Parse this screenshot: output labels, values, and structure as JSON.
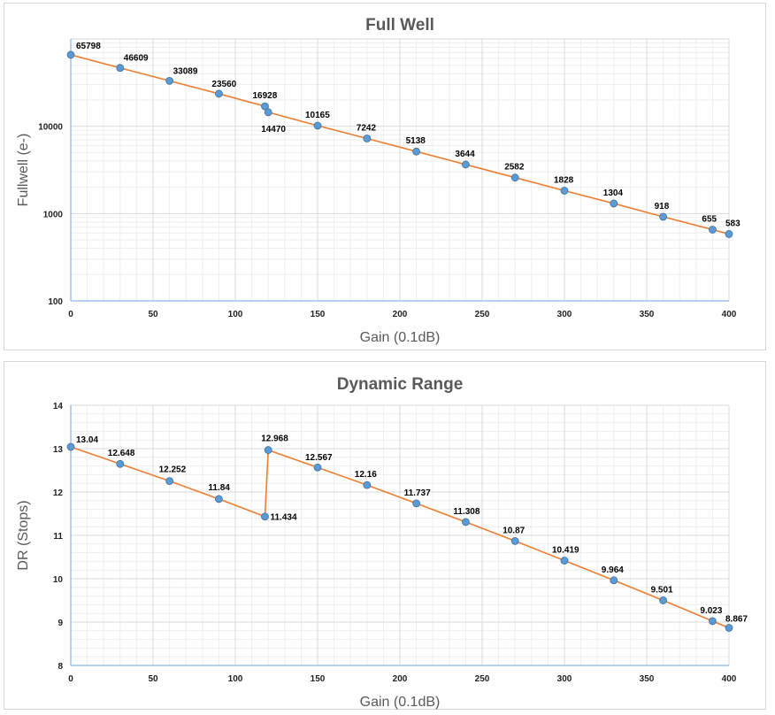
{
  "colors": {
    "line": "#ed7d31",
    "marker": "#5b9bd5",
    "marker_stroke": "#41719c",
    "grid": "#d9d9d9",
    "minor_grid": "#eeeeee",
    "axis": "#9dc3e6",
    "text": "#595959"
  },
  "chart_data": [
    {
      "type": "line",
      "title": "Full Well",
      "xlabel": "Gain (0.1dB)",
      "ylabel": "Fullwell (e-)",
      "yscale": "log",
      "xlim": [
        0,
        400
      ],
      "ylim": [
        100,
        100000
      ],
      "x_ticks": [
        0,
        50,
        100,
        150,
        200,
        250,
        300,
        350,
        400
      ],
      "y_ticks": [
        100,
        1000,
        10000
      ],
      "grid": true,
      "series": [
        {
          "name": "Fullwell",
          "x": [
            0,
            30,
            60,
            90,
            118,
            120,
            150,
            180,
            210,
            240,
            270,
            300,
            330,
            360,
            390,
            400
          ],
          "values": [
            65798,
            46609,
            33089,
            23560,
            16928,
            14470,
            10165,
            7242,
            5138,
            3644,
            2582,
            1828,
            1304,
            918,
            655,
            583
          ],
          "labels": [
            "65798",
            "46609",
            "33089",
            "23560",
            "16928",
            "14470",
            "10165",
            "7242",
            "5138",
            "3644",
            "2582",
            "1828",
            "1304",
            "918",
            "655",
            "583"
          ]
        }
      ]
    },
    {
      "type": "line",
      "title": "Dynamic Range",
      "xlabel": "Gain (0.1dB)",
      "ylabel": "DR (Stops)",
      "yscale": "linear",
      "xlim": [
        0,
        400
      ],
      "ylim": [
        8,
        14
      ],
      "x_ticks": [
        0,
        50,
        100,
        150,
        200,
        250,
        300,
        350,
        400
      ],
      "y_ticks": [
        8,
        9,
        10,
        11,
        12,
        13,
        14
      ],
      "grid": true,
      "series": [
        {
          "name": "DR",
          "x": [
            0,
            30,
            60,
            90,
            118,
            120,
            150,
            180,
            210,
            240,
            270,
            300,
            330,
            360,
            390,
            400
          ],
          "values": [
            13.04,
            12.648,
            12.252,
            11.84,
            11.434,
            12.968,
            12.567,
            12.16,
            11.737,
            11.308,
            10.87,
            10.419,
            9.964,
            9.501,
            9.023,
            8.867
          ],
          "labels": [
            "13.04",
            "12.648",
            "12.252",
            "11.84",
            "11.434",
            "12.968",
            "12.567",
            "12.16",
            "11.737",
            "11.308",
            "10.87",
            "10.419",
            "9.964",
            "9.501",
            "9.023",
            "8.867"
          ]
        }
      ]
    }
  ]
}
